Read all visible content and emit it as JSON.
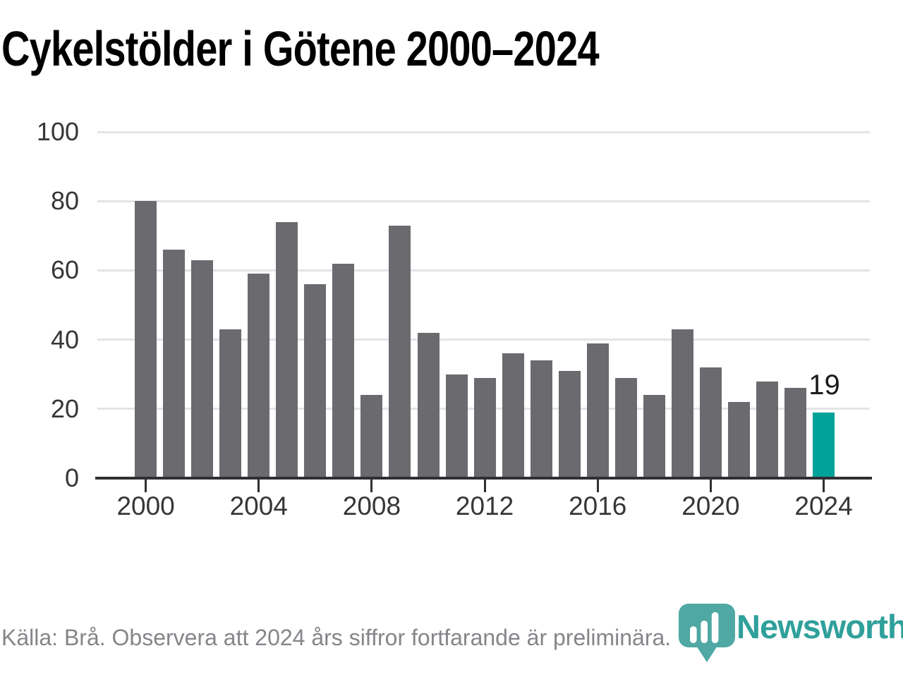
{
  "title": "Cykelstölder i Götene 2000–2024",
  "footer": {
    "source_note": "Källa: Brå. Observera att 2024 års siffror fortfarande är preliminära."
  },
  "logo": {
    "wordmark": "Newsworthy",
    "brand_color": "#2fa09b",
    "icon": "newsworthy-pin-barchart-icon",
    "icon_color": "#4fa8a3"
  },
  "chart_data": {
    "type": "bar",
    "title": "Cykelstölder i Götene 2000–2024",
    "categories": [
      2000,
      2001,
      2002,
      2003,
      2004,
      2005,
      2006,
      2007,
      2008,
      2009,
      2010,
      2011,
      2012,
      2013,
      2014,
      2015,
      2016,
      2017,
      2018,
      2019,
      2020,
      2021,
      2022,
      2023,
      2024
    ],
    "values": [
      80,
      66,
      63,
      43,
      59,
      74,
      56,
      62,
      24,
      73,
      42,
      30,
      29,
      36,
      34,
      31,
      39,
      29,
      24,
      43,
      32,
      22,
      28,
      26,
      19
    ],
    "xlabel": "",
    "ylabel": "",
    "ylim": [
      0,
      100
    ],
    "ytick_labels": [
      "0",
      "20",
      "40",
      "60",
      "80",
      "100"
    ],
    "xtick_labels": [
      "2000",
      "2004",
      "2008",
      "2012",
      "2016",
      "2020",
      "2024"
    ],
    "grid": "horizontal",
    "legend": "none",
    "highlight_category": 2024,
    "annotation": {
      "category": 2024,
      "label": "19"
    },
    "colors": {
      "bar": "#6b6b6f",
      "highlight": "#00a29a",
      "axis": "#303034",
      "gridline": "#e4e4e6",
      "tick_label": "#363636",
      "annotation": "#1a1a1a"
    }
  }
}
